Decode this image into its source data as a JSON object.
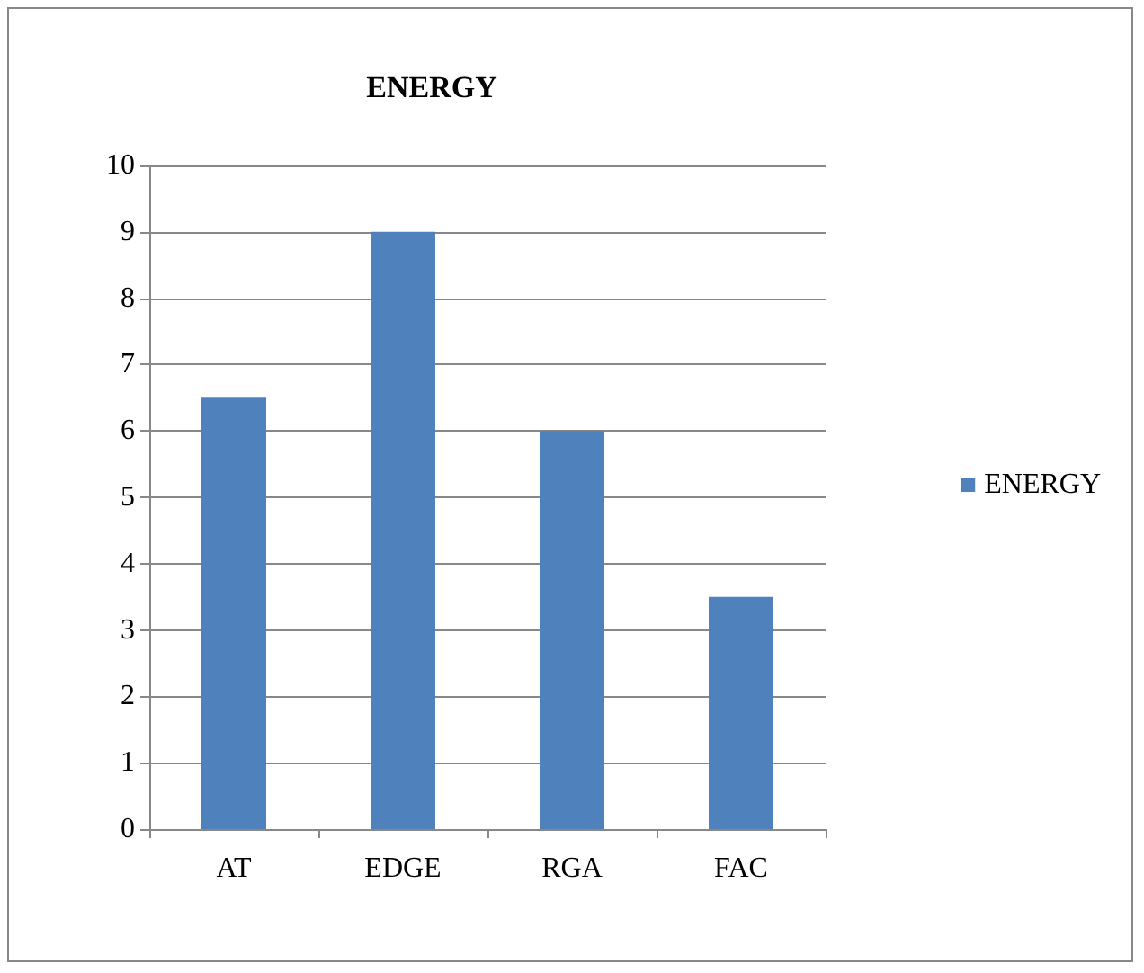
{
  "chart_data": {
    "type": "bar",
    "title": "ENERGY",
    "categories": [
      "AT",
      "EDGE",
      "RGA",
      "FAC"
    ],
    "series": [
      {
        "name": "ENERGY",
        "color": "#4f81bd",
        "values": [
          6.5,
          9,
          6,
          3.5
        ]
      }
    ],
    "ylim": [
      0,
      10
    ],
    "yticks": [
      0,
      1,
      2,
      3,
      4,
      5,
      6,
      7,
      8,
      9,
      10
    ],
    "grid": "y",
    "legend": "right"
  }
}
